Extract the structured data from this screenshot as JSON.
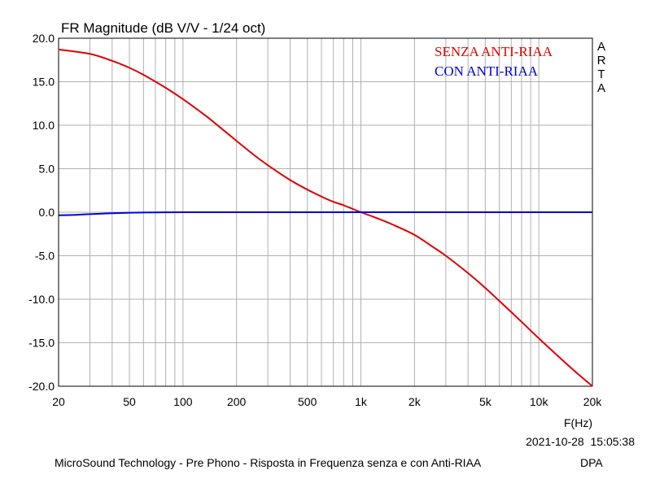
{
  "chart_data": {
    "type": "line",
    "title": "FR Magnitude (dB V/V - 1/24 oct)",
    "xlabel": "F(Hz)",
    "ylabel": "",
    "xscale": "log",
    "xlim": [
      20,
      20000
    ],
    "ylim": [
      -20,
      20
    ],
    "grid": true,
    "x_ticks": [
      20,
      50,
      100,
      200,
      500,
      1000,
      2000,
      5000,
      10000,
      20000
    ],
    "x_tick_labels": [
      "20",
      "50",
      "100",
      "200",
      "500",
      "1k",
      "2k",
      "5k",
      "10k",
      "20k"
    ],
    "y_ticks": [
      20,
      15,
      10,
      5,
      0,
      -5,
      -10,
      -15,
      -20
    ],
    "y_tick_labels": [
      "20.0",
      "15.0",
      "10.0",
      "5.0",
      "0.0",
      "-5.0",
      "-10.0",
      "-15.0",
      "-20.0"
    ],
    "legend_position": "top-right",
    "series": [
      {
        "name": "SENZA ANTI-RIAA",
        "color": "#e00000",
        "x": [
          20,
          30,
          40,
          50,
          60,
          80,
          100,
          130,
          150,
          200,
          250,
          300,
          400,
          500,
          600,
          700,
          800,
          1000,
          1200,
          1500,
          2000,
          2500,
          3000,
          4000,
          5000,
          6000,
          8000,
          10000,
          15000,
          20000
        ],
        "y": [
          18.7,
          18.2,
          17.4,
          16.6,
          15.8,
          14.3,
          13.0,
          11.3,
          10.3,
          8.2,
          6.6,
          5.4,
          3.7,
          2.6,
          1.8,
          1.2,
          0.8,
          0.0,
          -0.6,
          -1.4,
          -2.6,
          -3.9,
          -5.0,
          -7.0,
          -8.7,
          -10.2,
          -12.6,
          -14.5,
          -17.8,
          -20.0
        ]
      },
      {
        "name": "CON ANTI-RIAA",
        "color": "#0000e0",
        "x": [
          20,
          25,
          30,
          40,
          50,
          70,
          100,
          200,
          500,
          1000,
          2000,
          5000,
          10000,
          20000
        ],
        "y": [
          -0.35,
          -0.3,
          -0.22,
          -0.12,
          -0.06,
          -0.02,
          0.0,
          0.0,
          0.0,
          0.0,
          0.0,
          0.0,
          0.0,
          0.0
        ]
      }
    ]
  },
  "side_label": [
    "A",
    "R",
    "T",
    "A"
  ],
  "timestamp": "2021-10-28  15:05:38",
  "footer": "MicroSound Technology - Pre Phono - Risposta in Frequenza senza e con Anti-RIAA",
  "footer_right": "DPA"
}
